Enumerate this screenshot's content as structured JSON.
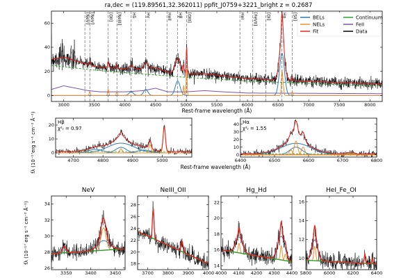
{
  "header": {
    "title": "ra,dec = (119.89561,32.362011)   ppfit_J0759+3221_bright   z = 0.2687"
  },
  "colors": {
    "data": "#000000",
    "fit": "#e8221c",
    "bel": "#2c7bb6",
    "nel": "#f28e2b",
    "continuum": "#2ca02c",
    "feii": "#7b52ae"
  },
  "chart_data": [
    {
      "type": "line",
      "panel": "full-spectrum",
      "title": "ra,dec = (119.89561,32.362011)   ppfit_J0759+3221_bright   z = 0.2687",
      "xlabel": "Rest-frame wavelength (Å)",
      "ylabel": "fλ (10⁻¹⁷erg s⁻¹ cm⁻² Å⁻¹)",
      "xlim": [
        2800,
        8200
      ],
      "ylim": [
        -5,
        70
      ],
      "xticks": [
        3000,
        3500,
        4000,
        4500,
        5000,
        5500,
        6000,
        6500,
        7000,
        7500,
        8000
      ],
      "yticks": [
        0,
        20,
        40,
        60
      ],
      "legend": {
        "placement": "top-right",
        "entries": [
          "BELs",
          "NELs",
          "Fit",
          "Continuum",
          "FeII",
          "Data"
        ]
      },
      "line_markers": [
        {
          "x": 3346,
          "label": "[NeV]"
        },
        {
          "x": 3426,
          "label": "[NeV]"
        },
        {
          "x": 3727,
          "label": "[OII]"
        },
        {
          "x": 3869,
          "label": "[NeIII]"
        },
        {
          "x": 4102,
          "label": "Hδ"
        },
        {
          "x": 4340,
          "label": "Hγ"
        },
        {
          "x": 4686,
          "label": "HeII"
        },
        {
          "x": 4861,
          "label": "Hβ"
        },
        {
          "x": 5007,
          "label": "[OIII]"
        },
        {
          "x": 5876,
          "label": "HeI"
        },
        {
          "x": 6087,
          "label": "[FeVII]"
        },
        {
          "x": 6300,
          "label": "[OI]"
        },
        {
          "x": 6563,
          "label": "Hα"
        },
        {
          "x": 6731,
          "label": "[SII]"
        }
      ],
      "continuum": {
        "x": [
          2800,
          3500,
          4000,
          4500,
          5000,
          5500,
          6000,
          6500,
          7000,
          7500,
          8200
        ],
        "y": [
          25,
          21,
          19,
          17,
          15,
          13.5,
          12,
          11,
          10,
          9,
          8
        ]
      },
      "feii": {
        "x": [
          2800,
          3000,
          3200,
          3400,
          3600,
          4000,
          4300,
          4500,
          4700,
          5000,
          5300,
          5600,
          6000,
          8200
        ],
        "y": [
          5,
          8,
          6,
          4,
          3,
          3,
          4,
          6,
          3,
          3,
          4,
          3,
          2,
          1.5
        ]
      },
      "nel_lines": [
        {
          "x": 3426,
          "peak": 3,
          "sigma": 10
        },
        {
          "x": 3727,
          "peak": 5,
          "sigma": 10
        },
        {
          "x": 3869,
          "peak": 3,
          "sigma": 10
        },
        {
          "x": 4959,
          "peak": 8,
          "sigma": 8
        },
        {
          "x": 5007,
          "peak": 22,
          "sigma": 8
        },
        {
          "x": 6563,
          "peak": 20,
          "sigma": 10
        },
        {
          "x": 6584,
          "peak": 8,
          "sigma": 10
        },
        {
          "x": 6731,
          "peak": 3,
          "sigma": 10
        }
      ],
      "bel_lines": [
        {
          "x": 4861,
          "peak": 12,
          "sigma": 40
        },
        {
          "x": 4340,
          "peak": 5,
          "sigma": 35
        },
        {
          "x": 4102,
          "peak": 3,
          "sigma": 35
        },
        {
          "x": 6563,
          "peak": 35,
          "sigma": 40
        }
      ]
    },
    {
      "type": "line",
      "panel": "hbeta-zoom",
      "title": "Hβ",
      "annotation": "χ²ᵣ = 0.97",
      "xlabel": "Rest-frame wavelength (Å)",
      "xlim": [
        4640,
        5100
      ],
      "ylim": [
        -3,
        25
      ],
      "xticks": [
        4700,
        4800,
        4900,
        5000
      ],
      "yticks": [
        0,
        10,
        20
      ],
      "bel_components": [
        {
          "x": 4861,
          "peak": 7,
          "sigma": 45
        },
        {
          "x": 4861,
          "peak": 4,
          "sigma": 18
        },
        {
          "x": 4775,
          "peak": 2.5,
          "sigma": 25
        },
        {
          "x": 4940,
          "peak": 2,
          "sigma": 25
        }
      ],
      "nel_components": [
        {
          "x": 4861,
          "peak": 3,
          "sigma": 4
        },
        {
          "x": 4959,
          "peak": 6,
          "sigma": 4
        },
        {
          "x": 5007,
          "peak": 18,
          "sigma": 4
        }
      ],
      "continuum_level": 1.0
    },
    {
      "type": "line",
      "panel": "halpha-zoom",
      "title": "Hα",
      "annotation": "χ²ᵣ = 1.55",
      "xlabel": "Rest-frame wavelength (Å)",
      "xlim": [
        6400,
        6800
      ],
      "ylim": [
        -3,
        48
      ],
      "xticks": [
        6400,
        6500,
        6600,
        6700,
        6800
      ],
      "yticks": [
        0,
        10,
        20,
        30,
        40
      ],
      "bel_components": [
        {
          "x": 6563,
          "peak": 15,
          "sigma": 45
        },
        {
          "x": 6563,
          "peak": 10,
          "sigma": 18
        }
      ],
      "nel_components": [
        {
          "x": 6548,
          "peak": 6,
          "sigma": 5
        },
        {
          "x": 6563,
          "peak": 18,
          "sigma": 5
        },
        {
          "x": 6584,
          "peak": 10,
          "sigma": 5
        },
        {
          "x": 6716,
          "peak": 2,
          "sigma": 5
        },
        {
          "x": 6731,
          "peak": 2,
          "sigma": 5
        }
      ],
      "continuum_level": 1.0
    },
    {
      "type": "line",
      "panel": "nev-zoom",
      "title": "NeV",
      "ylabel": "fλ (10⁻¹⁷ erg s⁻¹ cm⁻² Å⁻¹)",
      "xlim": [
        3320,
        3470
      ],
      "ylim": [
        25.8,
        35
      ],
      "xticks": [
        3350,
        3400,
        3450
      ],
      "yticks": [
        26,
        28,
        30,
        32,
        34
      ],
      "continuum": {
        "x0": 3320,
        "y0": 27.8,
        "x1": 3470,
        "y1": 28.4
      },
      "gaussians": [
        {
          "x": 3346,
          "peak": 0.8,
          "sigma": 4,
          "comp": "nel"
        },
        {
          "x": 3426,
          "peak": 2.8,
          "sigma": 5,
          "comp": "nel"
        },
        {
          "x": 3426,
          "peak": 1.2,
          "sigma": 12,
          "comp": "bel"
        }
      ]
    },
    {
      "type": "line",
      "panel": "neii-oii-zoom",
      "title": "NeIII_OII",
      "xlim": [
        3650,
        4000
      ],
      "ylim": [
        17,
        29.5
      ],
      "xticks": [
        3700,
        3800,
        3900,
        4000
      ],
      "yticks": [
        18,
        20,
        22,
        24,
        26,
        28
      ],
      "continuum": {
        "x0": 3650,
        "y0": 23.5,
        "x1": 4000,
        "y1": 18
      },
      "gaussians": [
        {
          "x": 3727,
          "peak": 5.0,
          "sigma": 4,
          "comp": "nel"
        },
        {
          "x": 3869,
          "peak": 1.8,
          "sigma": 5,
          "comp": "nel"
        }
      ]
    },
    {
      "type": "line",
      "panel": "hg-hd-zoom",
      "title": "Hg_Hd",
      "xlim": [
        4000,
        4400
      ],
      "ylim": [
        13.5,
        22.8
      ],
      "xticks": [
        4000,
        4100,
        4200,
        4300,
        4400
      ],
      "yticks": [
        14,
        16,
        18,
        20,
        22
      ],
      "continuum": {
        "x0": 4000,
        "y0": 16.0,
        "x1": 4400,
        "y1": 14.5
      },
      "gaussians": [
        {
          "x": 4102,
          "peak": 2.0,
          "sigma": 20,
          "comp": "bel"
        },
        {
          "x": 4102,
          "peak": 1.2,
          "sigma": 5,
          "comp": "nel"
        },
        {
          "x": 4340,
          "peak": 3.0,
          "sigma": 20,
          "comp": "bel"
        },
        {
          "x": 4340,
          "peak": 1.8,
          "sigma": 5,
          "comp": "nel"
        },
        {
          "x": 4363,
          "peak": 0.8,
          "sigma": 5,
          "comp": "nel"
        }
      ]
    },
    {
      "type": "line",
      "panel": "hei-fe-oi-zoom",
      "title": "HeI_Fe_OI",
      "xlim": [
        5800,
        6400
      ],
      "ylim": [
        8.8,
        16.6
      ],
      "xticks": [
        5800,
        6000,
        6200,
        6400
      ],
      "yticks": [
        10,
        12,
        14,
        16
      ],
      "continuum": {
        "x0": 5800,
        "y0": 9.8,
        "x1": 6400,
        "y1": 9.4
      },
      "gaussians": [
        {
          "x": 5876,
          "peak": 2.2,
          "sigma": 25,
          "comp": "bel"
        },
        {
          "x": 5876,
          "peak": 1.5,
          "sigma": 8,
          "comp": "nel"
        },
        {
          "x": 6300,
          "peak": 1.0,
          "sigma": 5,
          "comp": "nel"
        },
        {
          "x": 6363,
          "peak": 0.6,
          "sigma": 5,
          "comp": "nel"
        }
      ]
    }
  ]
}
